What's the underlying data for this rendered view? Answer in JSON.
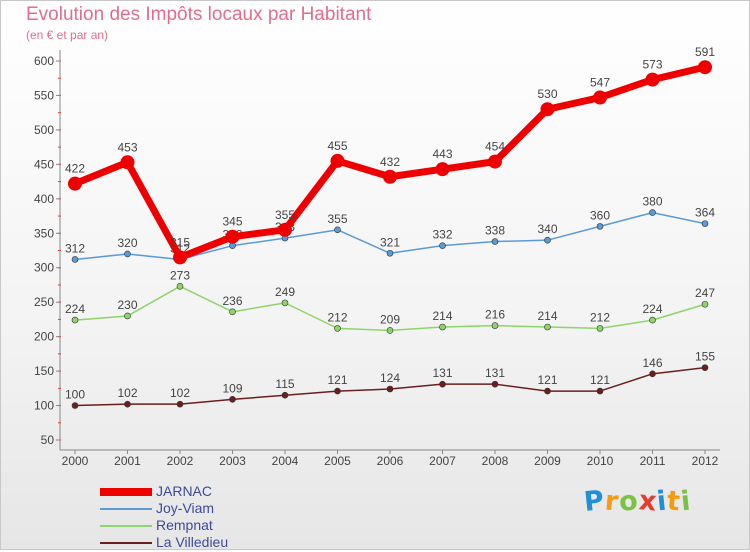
{
  "header": {
    "title": "Evolution des Impôts locaux par Habitant",
    "subtitle": "(en € et par an)"
  },
  "logo": {
    "text": "Proxiti",
    "letters": [
      "P",
      "r",
      "o",
      "x",
      "i",
      "t",
      "i"
    ],
    "colors": [
      "#1e8fd8",
      "#f39c12",
      "#7cc242",
      "#e63c2f",
      "#1e8fd8",
      "#f39c12",
      "#7cc242"
    ]
  },
  "chart_data": {
    "type": "line",
    "title": "Evolution des Impôts locaux par Habitant",
    "subtitle": "(en € et par an)",
    "xlabel": "",
    "ylabel": "",
    "x": [
      "2000",
      "2001",
      "2002",
      "2003",
      "2004",
      "2005",
      "2006",
      "2007",
      "2008",
      "2009",
      "2010",
      "2011",
      "2012"
    ],
    "ylim": [
      50,
      600
    ],
    "yticks": [
      50,
      100,
      150,
      200,
      250,
      300,
      350,
      400,
      450,
      500,
      550,
      600
    ],
    "grid": false,
    "legend_position": "bottom-left",
    "series": [
      {
        "name": "JARNAC",
        "color": "#ee0000",
        "emphasis": true,
        "values": [
          422,
          453,
          315,
          345,
          355,
          455,
          432,
          443,
          454,
          530,
          547,
          573,
          591
        ],
        "labels": [
          "422",
          "453",
          "315",
          "345",
          "355",
          "455",
          "432",
          "443",
          "454",
          "530",
          "547",
          "573",
          "591"
        ]
      },
      {
        "name": "Joy-Viam",
        "color": "#5b9bd5",
        "emphasis": false,
        "values": [
          312,
          320,
          312,
          332,
          343,
          355,
          321,
          332,
          338,
          340,
          360,
          380,
          364
        ],
        "labels": [
          "312",
          "320",
          "312",
          "332",
          "343",
          "355",
          "321",
          "332",
          "338",
          "340",
          "360",
          "380",
          "364"
        ]
      },
      {
        "name": "Rempnat",
        "color": "#8fd46b",
        "emphasis": false,
        "values": [
          224,
          230,
          273,
          236,
          249,
          212,
          209,
          214,
          216,
          214,
          212,
          224,
          247
        ],
        "labels": [
          "224",
          "230",
          "273",
          "236",
          "249",
          "212",
          "209",
          "214",
          "216",
          "214",
          "212",
          "224",
          "247"
        ]
      },
      {
        "name": "La Villedieu",
        "color": "#6b1e1e",
        "emphasis": false,
        "values": [
          100,
          102,
          102,
          109,
          115,
          121,
          124,
          131,
          131,
          121,
          121,
          146,
          155
        ],
        "labels": [
          "100",
          "102",
          "102",
          "109",
          "115",
          "121",
          "124",
          "131",
          "131",
          "121",
          "121",
          "146",
          "155"
        ]
      }
    ]
  }
}
